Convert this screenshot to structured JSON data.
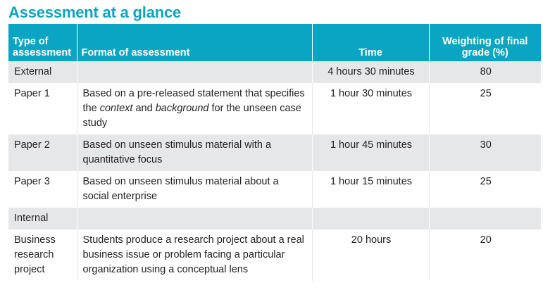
{
  "title": "Assessment at a glance",
  "headers": {
    "type": "Type of assessment",
    "format": "Format of assessment",
    "time": "Time",
    "weighting": "Weighting of final grade (%)"
  },
  "rows": [
    {
      "type": "External",
      "format": "",
      "time": "4 hours 30 minutes",
      "weighting": "80"
    },
    {
      "type": "Paper 1",
      "format_parts": [
        "Based on a pre-released statement that specifies the ",
        "context",
        " and ",
        "background",
        " for the unseen case study"
      ],
      "time": "1 hour 30 minutes",
      "weighting": "25"
    },
    {
      "type": "Paper 2",
      "format": "Based on unseen stimulus material with a quantitative focus",
      "time": "1 hour 45 minutes",
      "weighting": "30"
    },
    {
      "type": "Paper 3",
      "format": "Based on unseen stimulus material about a social enterprise",
      "time": "1 hour 15 minutes",
      "weighting": "25"
    },
    {
      "type": "Internal",
      "format": "",
      "time": "",
      "weighting": ""
    },
    {
      "type": "Business research project",
      "format": "Students produce a research project about a real business issue or problem facing a particular organization using a conceptual lens",
      "time": "20 hours",
      "weighting": "20"
    }
  ],
  "colors": {
    "header_bg": "#0aa5c2",
    "shade_row": "#e6e7e8",
    "title": "#0aa5c2"
  }
}
